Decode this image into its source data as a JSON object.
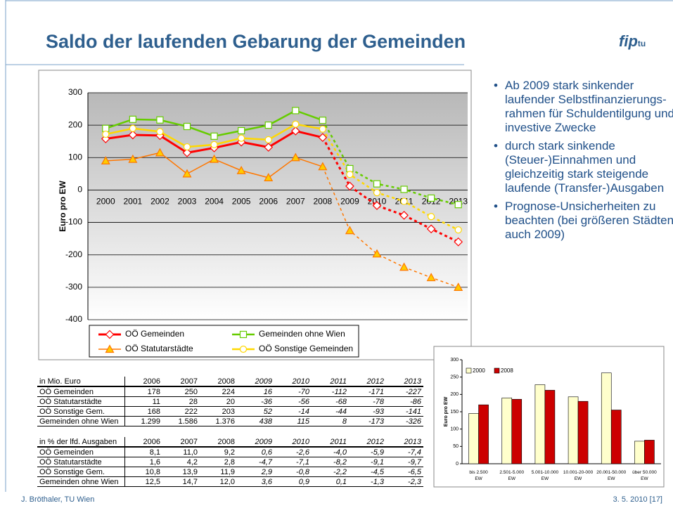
{
  "slide": {
    "title": "Saldo der laufenden Gebarung der Gemeinden",
    "logo": "fip",
    "logo_sub": "tu",
    "bullets": [
      "Ab 2009 stark sinkender laufender Selbstfinanzierungs-rahmen für Schuldentilgung und investive Zwecke",
      "durch stark sinkende (Steuer-)Einnahmen und gleichzeitig stark steigende laufende (Transfer-)Ausgaben",
      "Prognose-Unsicherheiten zu beachten (bei größeren Städten auch 2009)"
    ],
    "footer_left": "J. Bröthaler, TU Wien",
    "footer_right": "3. 5. 2010  [17]"
  },
  "tables": [
    {
      "header": [
        "in Mio. Euro",
        "2006",
        "2007",
        "2008",
        "2009",
        "2010",
        "2011",
        "2012",
        "2013"
      ],
      "rows": [
        [
          "OÖ Gemeinden",
          "178",
          "250",
          "224",
          "16",
          "-70",
          "-112",
          "-171",
          "-227"
        ],
        [
          "OÖ Statutarstädte",
          "11",
          "28",
          "20",
          "-36",
          "-56",
          "-68",
          "-78",
          "-86"
        ],
        [
          "OÖ Sonstige Gem.",
          "168",
          "222",
          "203",
          "52",
          "-14",
          "-44",
          "-93",
          "-141"
        ],
        [
          "Gemeinden ohne Wien",
          "1.299",
          "1.586",
          "1.376",
          "438",
          "115",
          "8",
          "-173",
          "-326"
        ]
      ]
    },
    {
      "header": [
        "in % der lfd. Ausgaben",
        "2006",
        "2007",
        "2008",
        "2009",
        "2010",
        "2011",
        "2012",
        "2013"
      ],
      "rows": [
        [
          "OÖ Gemeinden",
          "8,1",
          "11,0",
          "9,2",
          "0,6",
          "-2,6",
          "-4,0",
          "-5,9",
          "-7,4"
        ],
        [
          "OÖ Statutarstädte",
          "1,6",
          "4,2",
          "2,8",
          "-4,7",
          "-7,1",
          "-8,2",
          "-9,1",
          "-9,7"
        ],
        [
          "OÖ Sonstige Gem.",
          "10,8",
          "13,9",
          "11,9",
          "2,9",
          "-0,8",
          "-2,2",
          "-4,5",
          "-6,5"
        ],
        [
          "Gemeinden ohne Wien",
          "12,5",
          "14,7",
          "12,0",
          "3,6",
          "0,9",
          "0,1",
          "-1,3",
          "-2,3"
        ]
      ]
    }
  ],
  "chart_data": [
    {
      "type": "line",
      "y_label": "Euro pro EW",
      "dashed_from": "2008",
      "categories": [
        "2000",
        "2001",
        "2002",
        "2003",
        "2004",
        "2005",
        "2006",
        "2007",
        "2008",
        "2009",
        "2010",
        "2011",
        "2012",
        "2013"
      ],
      "ylim": [
        -400,
        300
      ],
      "yticks": [
        -400,
        -300,
        -200,
        -100,
        0,
        100,
        200,
        300
      ],
      "grid": true,
      "series": [
        {
          "name": "OÖ Gemeinden",
          "color": "#ff0000",
          "marker": "diamond",
          "marker_fill": "#ffffff",
          "width": 3,
          "values": [
            158,
            170,
            168,
            115,
            130,
            148,
            132,
            182,
            162,
            12,
            -48,
            -78,
            -120,
            -160
          ]
        },
        {
          "name": "Gemeinden ohne Wien",
          "color": "#66cc00",
          "marker": "square",
          "marker_fill": "#ffffff",
          "width": 2.5,
          "values": [
            190,
            218,
            216,
            196,
            166,
            183,
            200,
            245,
            215,
            66,
            19,
            2,
            -25,
            -45
          ]
        },
        {
          "name": "OÖ Statutarstädte",
          "color": "#ff7700",
          "marker": "triangle",
          "marker_fill": "#ffcc00",
          "width": 1.5,
          "values": [
            90,
            95,
            115,
            50,
            95,
            60,
            38,
            100,
            72,
            -125,
            -197,
            -238,
            -270,
            -300
          ]
        },
        {
          "name": "OÖ Sonstige Gemeinden",
          "color": "#ffd800",
          "marker": "circle",
          "marker_fill": "#ffffff",
          "width": 2.5,
          "values": [
            172,
            190,
            180,
            133,
            140,
            160,
            155,
            203,
            188,
            48,
            -8,
            -35,
            -82,
            -123
          ]
        }
      ]
    },
    {
      "type": "bar",
      "y_label": "Euro pro EW",
      "categories": [
        "bis 2.500 EW",
        "2.501-5.000 EW",
        "5.001-10.000 EW",
        "10.001-20-000 EW",
        "20.001-50.000 EW",
        "über 50.000 EW"
      ],
      "ylim": [
        0,
        300
      ],
      "yticks": [
        0,
        50,
        100,
        150,
        200,
        250,
        300
      ],
      "series": [
        {
          "name": "2000",
          "color": "#ffffcc",
          "values": [
            145,
            190,
            228,
            193,
            262,
            65
          ]
        },
        {
          "name": "2008",
          "color": "#cc0000",
          "values": [
            170,
            186,
            212,
            180,
            155,
            68
          ]
        }
      ]
    }
  ]
}
